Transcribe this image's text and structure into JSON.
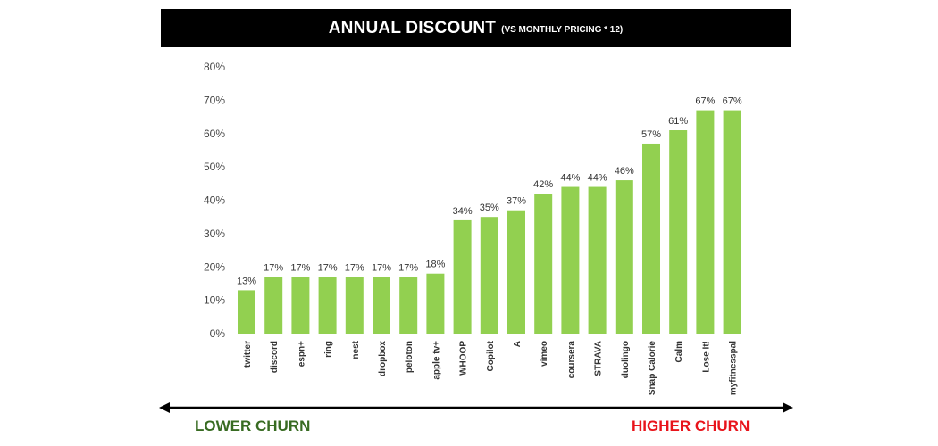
{
  "title": {
    "main": "ANNUAL DISCOUNT",
    "sub": "(VS MONTHLY PRICING * 12)"
  },
  "colors": {
    "bar": "#92d050",
    "lower_churn": "#386b22",
    "higher_churn": "#e8141b"
  },
  "chart_data": {
    "type": "bar",
    "title": "ANNUAL DISCOUNT (VS MONTHLY PRICING * 12)",
    "categories": [
      "twitter",
      "discord",
      "espn+",
      "ring",
      "nest",
      "dropbox",
      "peloton",
      "apple tv+",
      "WHOOP",
      "Copilot",
      "A",
      "vimeo",
      "coursera",
      "STRAVA",
      "duolingo",
      "Snap Calorie",
      "Calm",
      "Lose It!",
      "myfitnesspal"
    ],
    "values": [
      13,
      17,
      17,
      17,
      17,
      17,
      17,
      18,
      34,
      35,
      37,
      42,
      44,
      44,
      46,
      57,
      61,
      67,
      67
    ],
    "data_labels": [
      "13%",
      "17%",
      "17%",
      "17%",
      "17%",
      "17%",
      "17%",
      "18%",
      "34%",
      "35%",
      "37%",
      "42%",
      "44%",
      "44%",
      "46%",
      "57%",
      "61%",
      "67%",
      "67%"
    ],
    "y_ticks": [
      "0%",
      "10%",
      "20%",
      "30%",
      "40%",
      "50%",
      "60%",
      "70%",
      "80%"
    ],
    "ylim": [
      0,
      80
    ],
    "grid": false,
    "legend": "none",
    "xlabel": "",
    "ylabel": ""
  },
  "annotations": {
    "lower_churn": "LOWER CHURN",
    "higher_churn": "HIGHER CHURN"
  }
}
